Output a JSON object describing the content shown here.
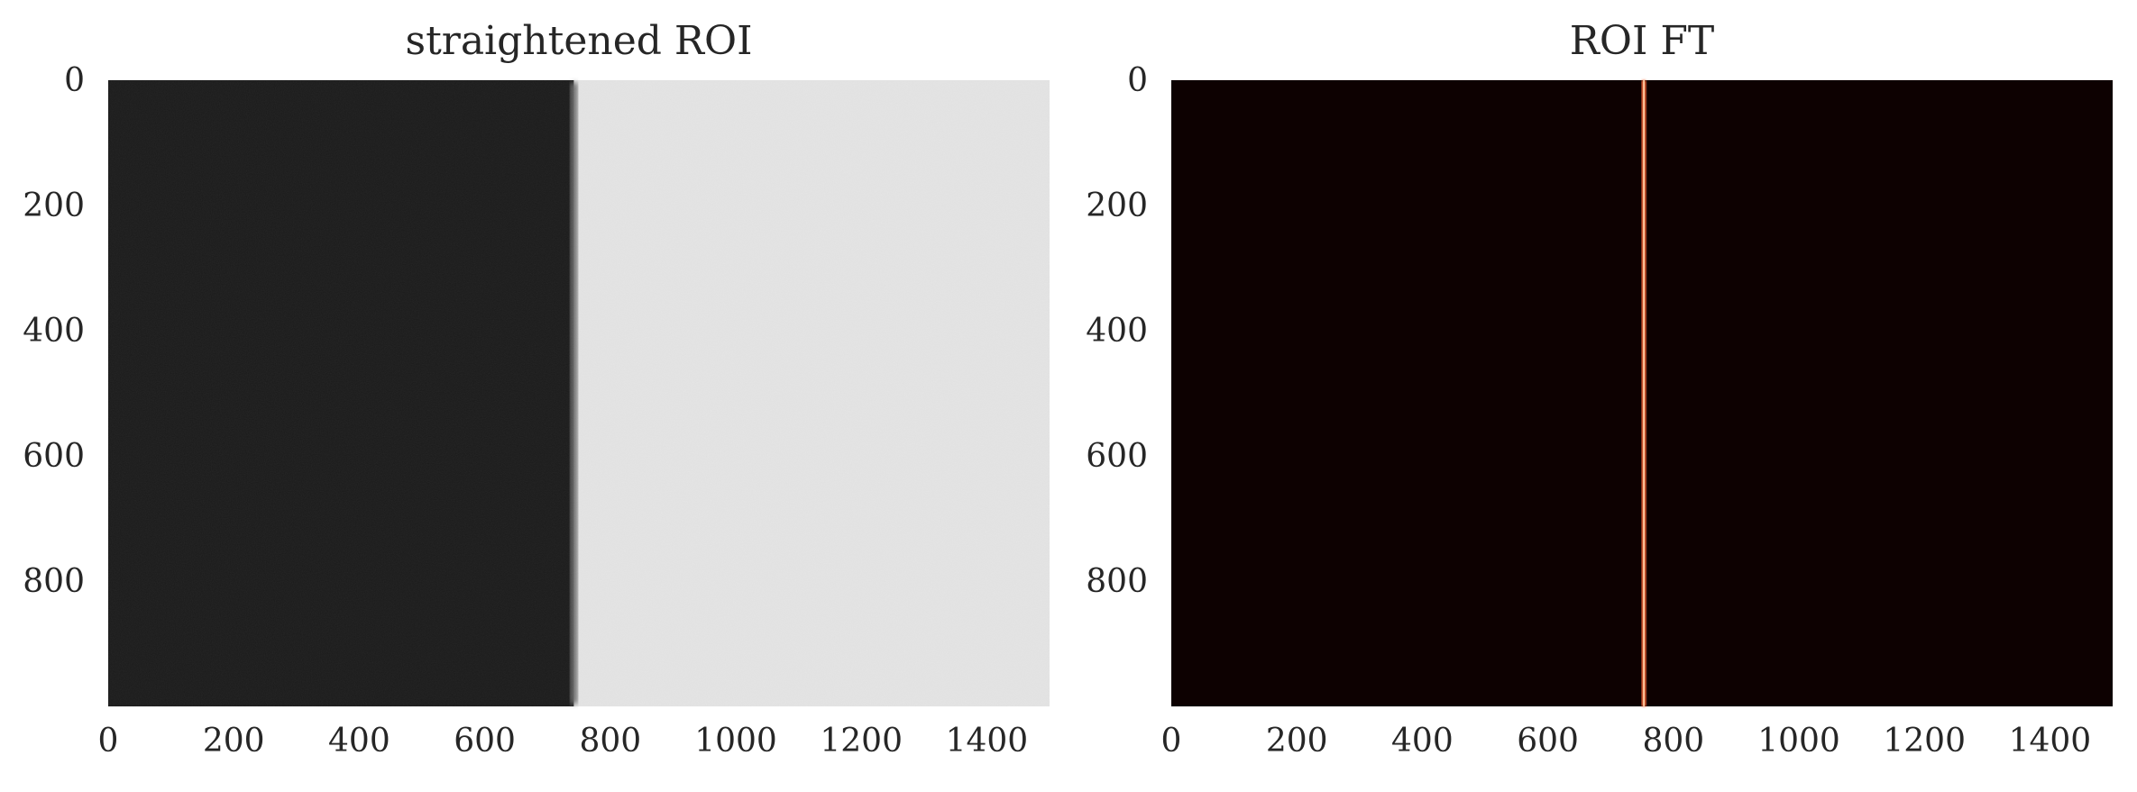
{
  "chart_data": [
    {
      "type": "image",
      "title": "straightened ROI",
      "xlabel": "",
      "ylabel": "",
      "colormap": "gray",
      "image_width": 1500,
      "image_height": 1000,
      "xlim": [
        0,
        1500
      ],
      "ylim": [
        1000,
        0
      ],
      "y_inverted": true,
      "xticks": [
        0,
        200,
        400,
        600,
        800,
        1000,
        1200,
        1400
      ],
      "yticks": [
        0,
        200,
        400,
        600,
        800
      ],
      "grid": false,
      "content": {
        "edge_x": 742,
        "left_color": "#1b1b1b",
        "right_color": "#e4e4e4"
      }
    },
    {
      "type": "image",
      "title": "ROI FT",
      "xlabel": "",
      "ylabel": "",
      "colormap": "hot",
      "image_width": 1500,
      "image_height": 1000,
      "xlim": [
        0,
        1500
      ],
      "ylim": [
        1000,
        0
      ],
      "y_inverted": true,
      "xticks": [
        0,
        200,
        400,
        600,
        800,
        1000,
        1200,
        1400
      ],
      "yticks": [
        0,
        200,
        400,
        600,
        800
      ],
      "grid": false,
      "content": {
        "line_x": 753,
        "background_color": "#0d0101",
        "line_color": "#ff6a3a",
        "line_core_color": "#ffd8b0"
      }
    }
  ]
}
